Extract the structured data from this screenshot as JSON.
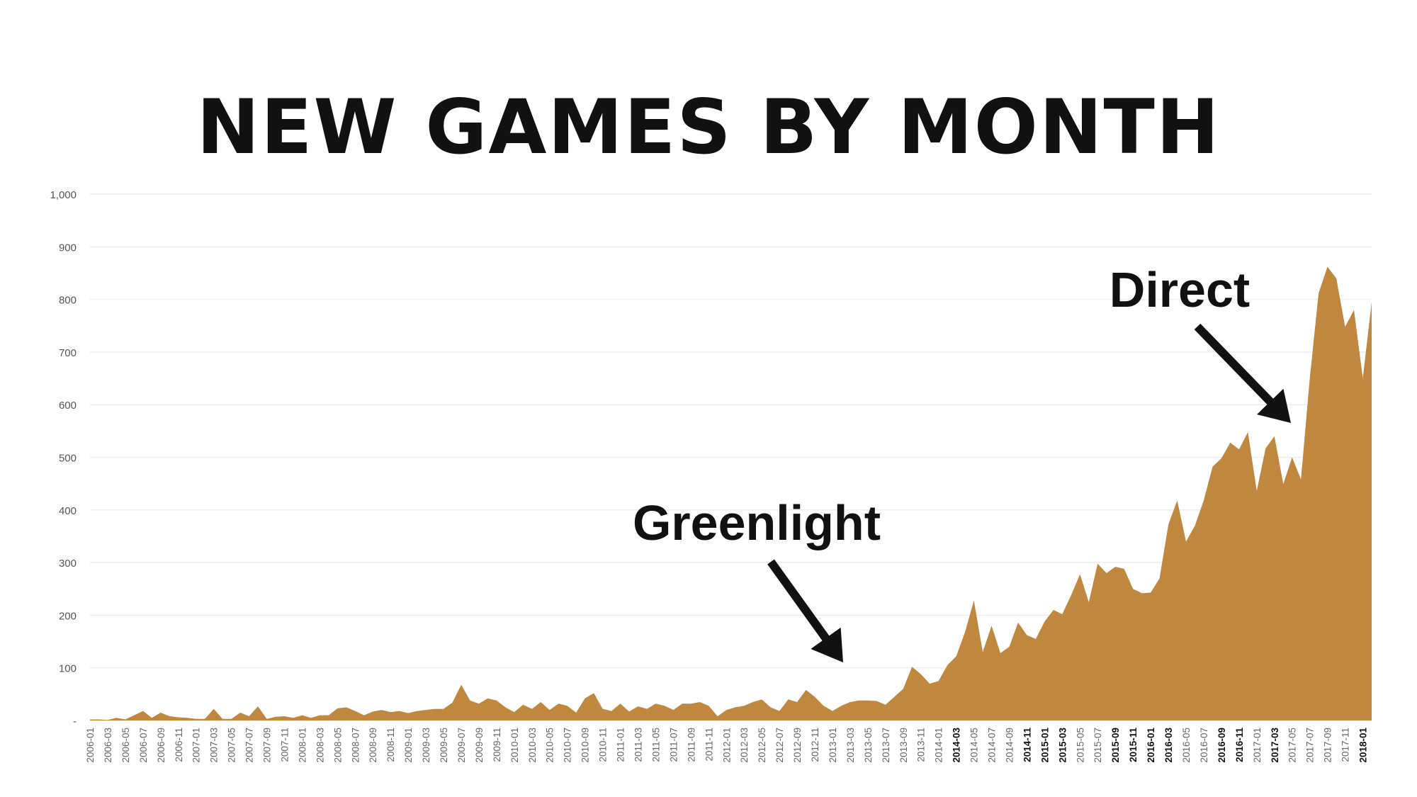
{
  "chart_data": {
    "type": "area",
    "title": "NEW GAMES BY MONTH",
    "xlabel": "",
    "ylabel": "",
    "ylim": [
      0,
      1000
    ],
    "yticks": [
      0,
      100,
      200,
      300,
      400,
      500,
      600,
      700,
      800,
      900,
      1000
    ],
    "ytick_labels": [
      "-",
      "100",
      "200",
      "300",
      "400",
      "500",
      "600",
      "700",
      "800",
      "900",
      "1,000"
    ],
    "grid": true,
    "legend": "none",
    "color": "#C0883F",
    "x": [
      "2006-01",
      "2006-02",
      "2006-03",
      "2006-04",
      "2006-05",
      "2006-06",
      "2006-07",
      "2006-08",
      "2006-09",
      "2006-10",
      "2006-11",
      "2006-12",
      "2007-01",
      "2007-02",
      "2007-03",
      "2007-04",
      "2007-05",
      "2007-06",
      "2007-07",
      "2007-08",
      "2007-09",
      "2007-10",
      "2007-11",
      "2007-12",
      "2008-01",
      "2008-02",
      "2008-03",
      "2008-04",
      "2008-05",
      "2008-06",
      "2008-07",
      "2008-08",
      "2008-09",
      "2008-10",
      "2008-11",
      "2008-12",
      "2009-01",
      "2009-02",
      "2009-03",
      "2009-04",
      "2009-05",
      "2009-06",
      "2009-07",
      "2009-08",
      "2009-09",
      "2009-10",
      "2009-11",
      "2009-12",
      "2010-01",
      "2010-02",
      "2010-03",
      "2010-04",
      "2010-05",
      "2010-06",
      "2010-07",
      "2010-08",
      "2010-09",
      "2010-10",
      "2010-11",
      "2010-12",
      "2011-01",
      "2011-02",
      "2011-03",
      "2011-04",
      "2011-05",
      "2011-06",
      "2011-07",
      "2011-08",
      "2011-09",
      "2011-10",
      "2011-11",
      "2011-12",
      "2012-01",
      "2012-02",
      "2012-03",
      "2012-04",
      "2012-05",
      "2012-06",
      "2012-07",
      "2012-08",
      "2012-09",
      "2012-10",
      "2012-11",
      "2012-12",
      "2013-01",
      "2013-02",
      "2013-03",
      "2013-04",
      "2013-05",
      "2013-06",
      "2013-07",
      "2013-08",
      "2013-09",
      "2013-10",
      "2013-11",
      "2013-12",
      "2014-01",
      "2014-02",
      "2014-03",
      "2014-04",
      "2014-05",
      "2014-06",
      "2014-07",
      "2014-08",
      "2014-09",
      "2014-10",
      "2014-11",
      "2014-12",
      "2015-01",
      "2015-02",
      "2015-03",
      "2015-04",
      "2015-05",
      "2015-06",
      "2015-07",
      "2015-08",
      "2015-09",
      "2015-10",
      "2015-11",
      "2015-12",
      "2016-01",
      "2016-02",
      "2016-03",
      "2016-04",
      "2016-05",
      "2016-06",
      "2016-07",
      "2016-08",
      "2016-09",
      "2016-10",
      "2016-11",
      "2016-12",
      "2017-01",
      "2017-02",
      "2017-03",
      "2017-04",
      "2017-05",
      "2017-06",
      "2017-07",
      "2017-08",
      "2017-09",
      "2017-10",
      "2017-11",
      "2017-12",
      "2018-01",
      "2018-02"
    ],
    "values": [
      2,
      2,
      1,
      5,
      2,
      10,
      18,
      5,
      15,
      8,
      6,
      5,
      3,
      3,
      22,
      3,
      3,
      15,
      8,
      27,
      3,
      7,
      8,
      5,
      10,
      5,
      10,
      10,
      23,
      25,
      18,
      10,
      17,
      20,
      16,
      18,
      14,
      18,
      20,
      22,
      22,
      34,
      68,
      38,
      32,
      42,
      38,
      25,
      16,
      30,
      22,
      35,
      20,
      32,
      28,
      15,
      42,
      52,
      22,
      18,
      32,
      17,
      27,
      22,
      32,
      28,
      20,
      32,
      32,
      35,
      28,
      8,
      20,
      25,
      28,
      35,
      40,
      25,
      18,
      40,
      35,
      58,
      45,
      28,
      18,
      28,
      35,
      38,
      38,
      37,
      30,
      45,
      60,
      102,
      88,
      70,
      75,
      105,
      122,
      168,
      228,
      130,
      180,
      128,
      140,
      186,
      162,
      155,
      188,
      210,
      202,
      238,
      278,
      225,
      298,
      280,
      292,
      288,
      250,
      242,
      243,
      270,
      372,
      418,
      340,
      370,
      418,
      482,
      498,
      528,
      515,
      548,
      436,
      517,
      540,
      449,
      500,
      458,
      650,
      812,
      862,
      840,
      748,
      780,
      650,
      795
    ]
  },
  "x_tick_labels": [
    "2006-01",
    "2006-03",
    "2006-05",
    "2006-07",
    "2006-09",
    "2006-11",
    "2007-01",
    "2007-03",
    "2007-05",
    "2007-07",
    "2007-09",
    "2007-11",
    "2008-01",
    "2008-03",
    "2008-05",
    "2008-07",
    "2008-09",
    "2008-11",
    "2009-01",
    "2009-03",
    "2009-05",
    "2009-07",
    "2009-09",
    "2009-11",
    "2010-01",
    "2010-03",
    "2010-05",
    "2010-07",
    "2010-09",
    "2010-11",
    "2011-01",
    "2011-03",
    "2011-05",
    "2011-07",
    "2011-09",
    "2011-11",
    "2012-01",
    "2012-03",
    "2012-05",
    "2012-07",
    "2012-09",
    "2012-11",
    "2013-01",
    "2013-03",
    "2013-05",
    "2013-07",
    "2013-09",
    "2013-11",
    "2014-01",
    "2014-03",
    "2014-05",
    "2014-07",
    "2014-09",
    "2014-11",
    "2015-01",
    "2015-03",
    "2015-05",
    "2015-07",
    "2015-09",
    "2015-11",
    "2016-01",
    "2016-03",
    "2016-05",
    "2016-07",
    "2016-09",
    "2016-11",
    "2017-01",
    "2017-03",
    "2017-05",
    "2017-07",
    "2017-09",
    "2017-11",
    "2018-01"
  ],
  "x_bold_labels": [
    "2014-03",
    "2014-11",
    "2015-01",
    "2015-03",
    "2015-09",
    "2015-11",
    "2016-01",
    "2016-03",
    "2016-09",
    "2016-11",
    "2017-03",
    "2018-01"
  ],
  "annotations": [
    {
      "text": "Greenlight",
      "at": "2013-02"
    },
    {
      "text": "Direct",
      "at": "2017-06"
    }
  ],
  "colors": {
    "area": "#C0883F",
    "grid": "#ECECEC",
    "axis_text": "#555555",
    "title": "#111111",
    "arrow": "#111111"
  }
}
